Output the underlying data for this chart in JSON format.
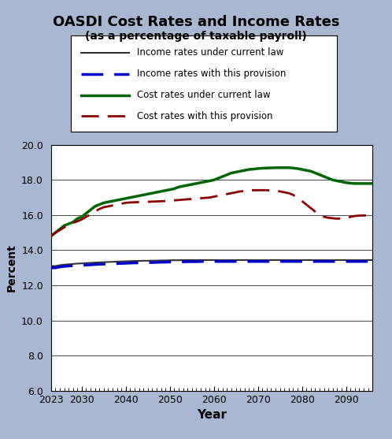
{
  "title": "OASDI Cost Rates and Income Rates",
  "subtitle": "(as a percentage of taxable payroll)",
  "xlabel": "Year",
  "ylabel": "Percent",
  "background_color": "#a8b8d0",
  "plot_bg_color": "#ffffff",
  "ylim": [
    6.0,
    20.0
  ],
  "yticks": [
    6.0,
    8.0,
    10.0,
    12.0,
    14.0,
    16.0,
    18.0,
    20.0
  ],
  "xlim": [
    2023,
    2096
  ],
  "xticks": [
    2023,
    2030,
    2040,
    2050,
    2060,
    2070,
    2080,
    2090
  ],
  "years": [
    2023,
    2024,
    2025,
    2026,
    2027,
    2028,
    2029,
    2030,
    2031,
    2032,
    2033,
    2034,
    2035,
    2036,
    2037,
    2038,
    2039,
    2040,
    2041,
    2042,
    2043,
    2044,
    2045,
    2046,
    2047,
    2048,
    2049,
    2050,
    2051,
    2052,
    2053,
    2054,
    2055,
    2056,
    2057,
    2058,
    2059,
    2060,
    2061,
    2062,
    2063,
    2064,
    2065,
    2066,
    2067,
    2068,
    2069,
    2070,
    2071,
    2072,
    2073,
    2074,
    2075,
    2076,
    2077,
    2078,
    2079,
    2080,
    2081,
    2082,
    2083,
    2084,
    2085,
    2086,
    2087,
    2088,
    2089,
    2090,
    2091,
    2092,
    2093,
    2094,
    2095,
    2096
  ],
  "income_current_law": [
    13.1,
    13.1,
    13.15,
    13.18,
    13.2,
    13.22,
    13.24,
    13.25,
    13.27,
    13.28,
    13.3,
    13.31,
    13.32,
    13.33,
    13.34,
    13.35,
    13.36,
    13.37,
    13.38,
    13.39,
    13.39,
    13.4,
    13.4,
    13.41,
    13.41,
    13.42,
    13.42,
    13.43,
    13.43,
    13.43,
    13.44,
    13.44,
    13.44,
    13.44,
    13.44,
    13.44,
    13.44,
    13.44,
    13.44,
    13.44,
    13.44,
    13.44,
    13.44,
    13.44,
    13.44,
    13.44,
    13.44,
    13.44,
    13.44,
    13.44,
    13.44,
    13.44,
    13.44,
    13.44,
    13.44,
    13.44,
    13.44,
    13.44,
    13.44,
    13.44,
    13.44,
    13.44,
    13.44,
    13.44,
    13.44,
    13.44,
    13.44,
    13.44,
    13.44,
    13.44,
    13.44,
    13.44,
    13.44,
    13.44
  ],
  "income_provision": [
    13.0,
    13.0,
    13.05,
    13.08,
    13.1,
    13.12,
    13.13,
    13.14,
    13.16,
    13.17,
    13.19,
    13.2,
    13.21,
    13.22,
    13.23,
    13.24,
    13.25,
    13.26,
    13.27,
    13.28,
    13.28,
    13.29,
    13.3,
    13.3,
    13.31,
    13.32,
    13.32,
    13.33,
    13.33,
    13.34,
    13.34,
    13.35,
    13.35,
    13.35,
    13.36,
    13.36,
    13.36,
    13.36,
    13.36,
    13.36,
    13.36,
    13.36,
    13.36,
    13.36,
    13.36,
    13.36,
    13.36,
    13.36,
    13.36,
    13.36,
    13.36,
    13.36,
    13.36,
    13.36,
    13.36,
    13.36,
    13.36,
    13.36,
    13.36,
    13.36,
    13.36,
    13.36,
    13.36,
    13.36,
    13.36,
    13.36,
    13.36,
    13.36,
    13.36,
    13.36,
    13.36,
    13.36,
    13.36,
    13.36
  ],
  "cost_current_law": [
    14.8,
    15.0,
    15.2,
    15.4,
    15.5,
    15.6,
    15.8,
    15.9,
    16.1,
    16.3,
    16.5,
    16.6,
    16.7,
    16.75,
    16.8,
    16.85,
    16.9,
    16.95,
    17.0,
    17.05,
    17.1,
    17.15,
    17.2,
    17.25,
    17.3,
    17.35,
    17.4,
    17.45,
    17.5,
    17.6,
    17.65,
    17.7,
    17.75,
    17.8,
    17.85,
    17.9,
    17.95,
    18.0,
    18.1,
    18.2,
    18.3,
    18.4,
    18.45,
    18.5,
    18.55,
    18.6,
    18.62,
    18.65,
    18.67,
    18.68,
    18.69,
    18.7,
    18.7,
    18.7,
    18.7,
    18.68,
    18.65,
    18.6,
    18.55,
    18.5,
    18.4,
    18.3,
    18.2,
    18.1,
    18.0,
    17.95,
    17.9,
    17.85,
    17.82,
    17.8,
    17.8,
    17.8,
    17.8,
    17.8
  ],
  "cost_provision": [
    14.8,
    15.0,
    15.15,
    15.3,
    15.45,
    15.55,
    15.65,
    15.75,
    15.9,
    16.05,
    16.2,
    16.35,
    16.45,
    16.5,
    16.55,
    16.6,
    16.65,
    16.7,
    16.72,
    16.73,
    16.74,
    16.75,
    16.76,
    16.77,
    16.78,
    16.79,
    16.8,
    16.82,
    16.84,
    16.86,
    16.88,
    16.9,
    16.92,
    16.94,
    16.96,
    16.98,
    17.0,
    17.05,
    17.1,
    17.15,
    17.2,
    17.25,
    17.3,
    17.35,
    17.38,
    17.4,
    17.42,
    17.42,
    17.42,
    17.42,
    17.4,
    17.38,
    17.35,
    17.3,
    17.25,
    17.15,
    17.0,
    16.8,
    16.6,
    16.4,
    16.2,
    16.0,
    15.9,
    15.85,
    15.82,
    15.8,
    15.8,
    15.8,
    15.9,
    15.95,
    15.97,
    15.98,
    15.99,
    16.0
  ],
  "income_current_color": "#333333",
  "income_provision_color": "#0000cc",
  "cost_current_color": "#006600",
  "cost_provision_color": "#8b0000",
  "legend_labels": [
    "Income rates under current law",
    "Income rates with this provision",
    "Cost rates under current law",
    "Cost rates with this provision"
  ]
}
